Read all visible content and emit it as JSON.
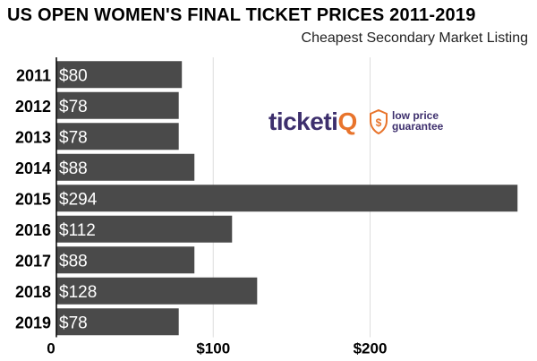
{
  "chart_data": {
    "type": "bar",
    "orientation": "horizontal",
    "title": "US OPEN WOMEN'S FINAL TICKET PRICES 2011-2019",
    "subtitle": "Cheapest Secondary Market Listing",
    "categories": [
      "2011",
      "2012",
      "2013",
      "2014",
      "2015",
      "2016",
      "2017",
      "2018",
      "2019"
    ],
    "values": [
      80,
      78,
      78,
      88,
      294,
      112,
      88,
      128,
      78
    ],
    "data_labels": [
      "$80",
      "$78",
      "$78",
      "$88",
      "$294",
      "$112",
      "$88",
      "$128",
      "$78"
    ],
    "x_ticks": [
      0,
      100,
      200
    ],
    "x_tick_labels": [
      "0",
      "$100",
      "$200"
    ],
    "xlim": [
      0,
      295
    ],
    "grid": true,
    "bar_color": "#4a4a4a",
    "label_color": "#ffffff"
  },
  "logo": {
    "brand_prefix": "ticketi",
    "brand_suffix": "Q",
    "tagline_line1": "low price",
    "tagline_line2": "guarantee",
    "brand_color": "#3d2f6d",
    "accent_color": "#e8742c"
  }
}
